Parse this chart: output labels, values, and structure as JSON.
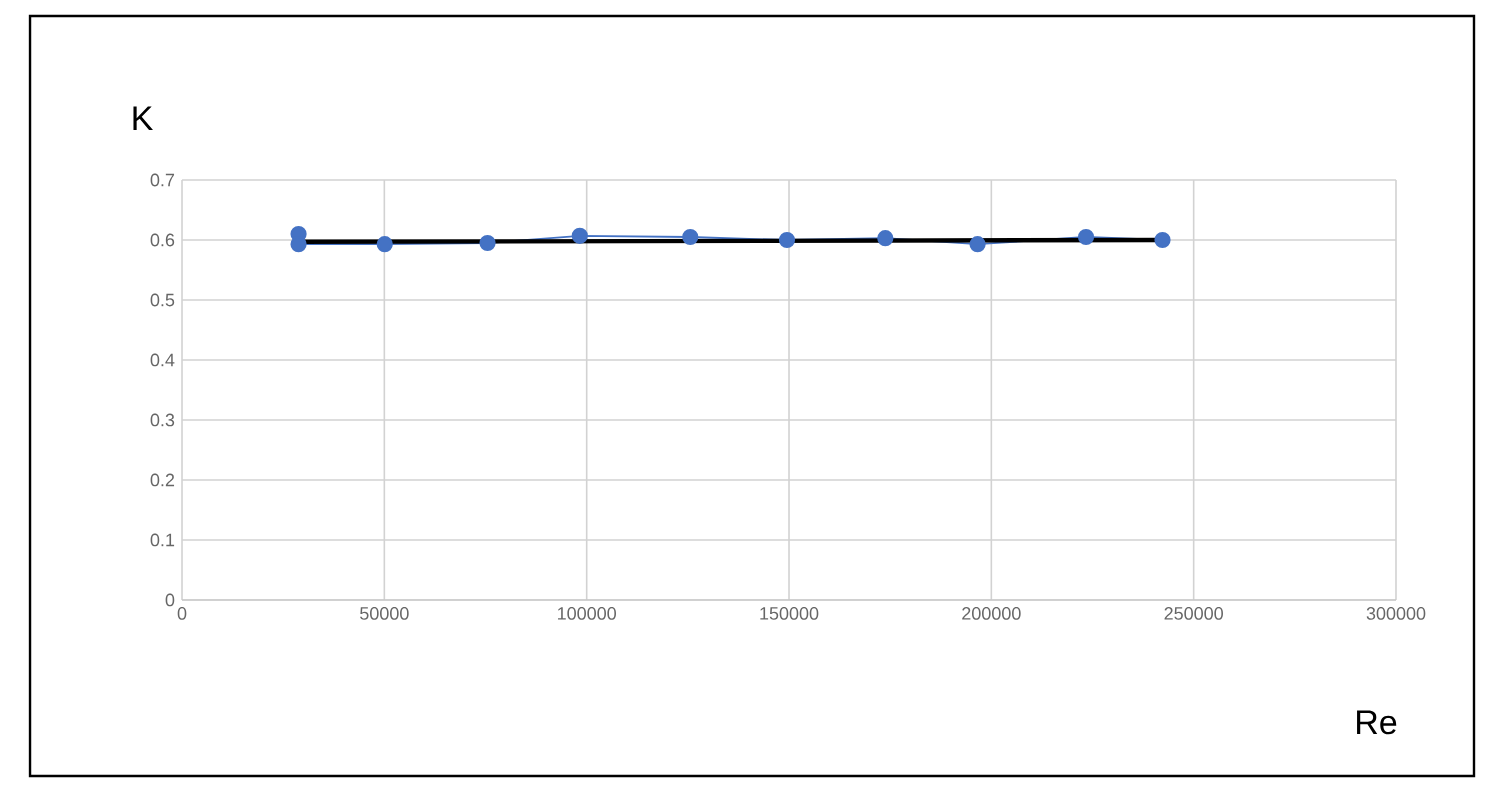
{
  "chart_data": {
    "type": "line",
    "ylabel": "K",
    "xlabel": "Re",
    "xlim": [
      0,
      300000
    ],
    "xticks": [
      0,
      50000,
      100000,
      150000,
      200000,
      250000,
      300000
    ],
    "ylim": [
      0,
      0.7
    ],
    "yticks": [
      0,
      0.1,
      0.2,
      0.3,
      0.4,
      0.5,
      0.6,
      0.7
    ],
    "grid": true,
    "marker": "circle",
    "series": [
      {
        "color": "#4472c4",
        "x": [
          28800,
          28800,
          50100,
          75500,
          98300,
          125600,
          149500,
          173800,
          196600,
          223400,
          242300
        ],
        "values": [
          0.61,
          0.593,
          0.593,
          0.595,
          0.607,
          0.605,
          0.6,
          0.603,
          0.593,
          0.605,
          0.6
        ]
      },
      {
        "color": "#000000",
        "marker": "none",
        "x": [
          28800,
          242300
        ],
        "values": [
          0.597,
          0.6
        ]
      }
    ]
  }
}
